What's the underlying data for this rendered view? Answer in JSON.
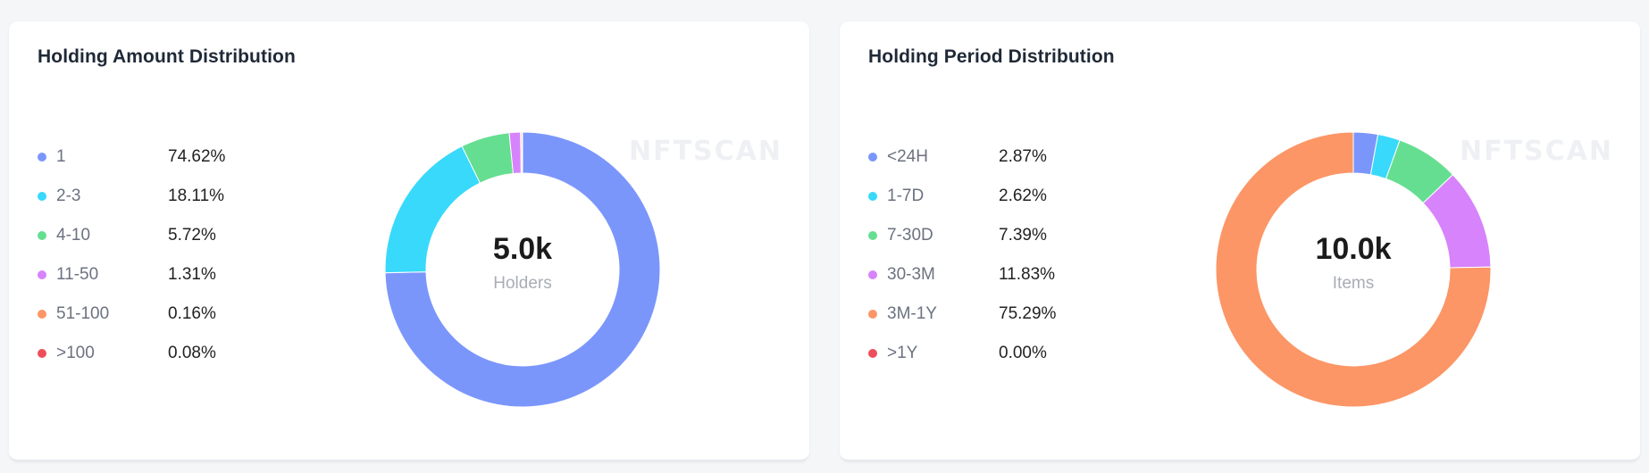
{
  "watermark": "NFTSCAN",
  "chart_data": [
    {
      "type": "pie",
      "title": "Holding Amount Distribution",
      "center_value": "5.0k",
      "center_label": "Holders",
      "categories": [
        "1",
        "2-3",
        "4-10",
        "11-50",
        "51-100",
        ">100"
      ],
      "values": [
        74.62,
        18.11,
        5.72,
        1.31,
        0.16,
        0.08
      ],
      "value_labels": [
        "74.62%",
        "18.11%",
        "5.72%",
        "1.31%",
        "0.16%",
        "0.08%"
      ],
      "colors": [
        "#7b96fb",
        "#38d9fb",
        "#66de91",
        "#d783fb",
        "#fc9666",
        "#ee4e5b"
      ],
      "legend_position": "left",
      "grid": false
    },
    {
      "type": "pie",
      "title": "Holding Period Distribution",
      "center_value": "10.0k",
      "center_label": "Items",
      "categories": [
        "<24H",
        "1-7D",
        "7-30D",
        "30-3M",
        "3M-1Y",
        ">1Y"
      ],
      "values": [
        2.87,
        2.62,
        7.39,
        11.83,
        75.29,
        0.0
      ],
      "value_labels": [
        "2.87%",
        "2.62%",
        "7.39%",
        "11.83%",
        "75.29%",
        "0.00%"
      ],
      "colors": [
        "#7b96fb",
        "#38d9fb",
        "#66de91",
        "#d783fb",
        "#fc9666",
        "#ee4e5b"
      ],
      "legend_position": "left",
      "grid": false
    }
  ]
}
